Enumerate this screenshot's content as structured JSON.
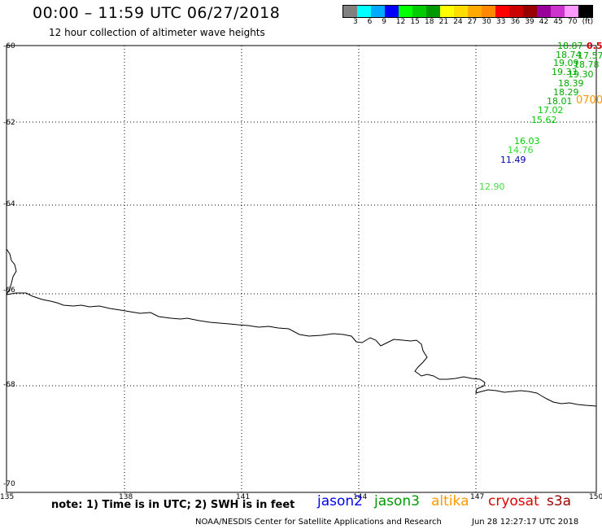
{
  "header": {
    "title": "00:00 – 11:59 UTC 06/27/2018",
    "subtitle": "12 hour collection of altimeter wave heights"
  },
  "color_scale": {
    "swatches": [
      "#808080",
      "#00ffff",
      "#00aaff",
      "#0000ff",
      "#00ff00",
      "#00cc00",
      "#009900",
      "#ffff00",
      "#ffdd00",
      "#ffaa00",
      "#ff8800",
      "#ff0000",
      "#cc0000",
      "#990000",
      "#990099",
      "#cc33cc",
      "#ff99ff",
      "#000000"
    ],
    "labels": [
      "3",
      "6",
      "9",
      "12",
      "15",
      "18",
      "21",
      "24",
      "27",
      "30",
      "33",
      "36",
      "39",
      "42",
      "45",
      "70",
      "(ft)"
    ]
  },
  "axes": {
    "lat_labels": [
      "-60",
      "-62",
      "-64",
      "-66",
      "-68",
      "-70"
    ],
    "lon_labels": [
      "135",
      "138",
      "141",
      "144",
      "147",
      "150"
    ]
  },
  "measurements": [
    {
      "value": "18.87",
      "color": "#00aa00"
    },
    {
      "value": "0.5",
      "color": "#cc0000"
    },
    {
      "value": "18.74",
      "color": "#00aa00"
    },
    {
      "value": "17.57",
      "color": "#00aa00"
    },
    {
      "value": "19.09",
      "color": "#00aa00"
    },
    {
      "value": "18.78",
      "color": "#00aa00"
    },
    {
      "value": "19.33",
      "color": "#00aa00"
    },
    {
      "value": "19.30",
      "color": "#00aa00"
    },
    {
      "value": "18.39",
      "color": "#00aa00"
    },
    {
      "value": "18.29",
      "color": "#00aa00"
    },
    {
      "value": "18.01",
      "color": "#00aa00"
    },
    {
      "value": "0700",
      "color": "#ff9900"
    },
    {
      "value": "17.02",
      "color": "#00cc00"
    },
    {
      "value": "15.62",
      "color": "#00cc00"
    },
    {
      "value": "16.03",
      "color": "#00cc00"
    },
    {
      "value": "14.76",
      "color": "#33dd33"
    },
    {
      "value": "11.49",
      "color": "#0000aa"
    },
    {
      "value": "12.90",
      "color": "#44dd44"
    }
  ],
  "legend": {
    "note": "note: 1) Time is in UTC; 2) SWH is in feet",
    "satellites": [
      {
        "name": "jason2",
        "color": "#0000ee"
      },
      {
        "name": "jason3",
        "color": "#009900"
      },
      {
        "name": "altika",
        "color": "#ff9900"
      },
      {
        "name": "cryosat",
        "color": "#dd0000"
      },
      {
        "name": "s3a",
        "color": "#990000"
      }
    ]
  },
  "footer": {
    "credit": "NOAA/NESDIS Center for Satellite Applications and Research",
    "timestamp": "Jun 28 12:27:17 UTC 2018"
  }
}
